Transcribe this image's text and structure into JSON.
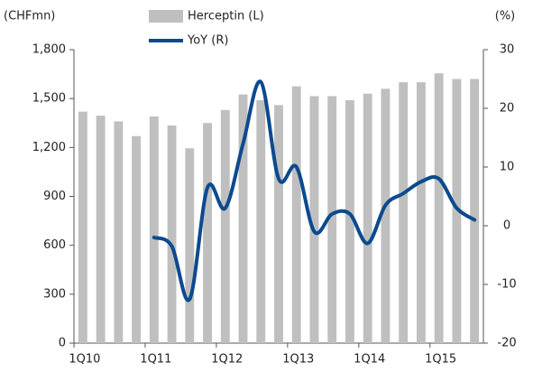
{
  "chart_data": {
    "type": "bar-line",
    "y_unit_label": "(CHFmn)",
    "y2_unit_label": "(%)",
    "categories": [
      "1Q10",
      null,
      null,
      null,
      "1Q11",
      null,
      null,
      null,
      "1Q12",
      null,
      null,
      null,
      "1Q13",
      null,
      null,
      null,
      "1Q14",
      null,
      null,
      null,
      "1Q15",
      null,
      null
    ],
    "series": [
      {
        "name": "Herceptin (L)",
        "type": "bar",
        "color": "#bfbfbf",
        "values": [
          1420,
          1395,
          1360,
          1270,
          1390,
          1335,
          1195,
          1350,
          1430,
          1525,
          1490,
          1460,
          1575,
          1515,
          1515,
          1490,
          1530,
          1560,
          1600,
          1600,
          1655,
          1620,
          1620
        ]
      },
      {
        "name": "YoY (R)",
        "type": "line",
        "axis": "y2",
        "color": "#0b4a8e",
        "values": [
          null,
          null,
          null,
          null,
          -2,
          -3.5,
          -12.5,
          6.5,
          3,
          14,
          24.5,
          8,
          10,
          -1,
          2,
          2,
          -3,
          3.5,
          5.5,
          7.5,
          8,
          3,
          1
        ]
      }
    ],
    "ylim": [
      0,
      1800
    ],
    "yticks": [
      0,
      300,
      600,
      900,
      {
        "value": 1200,
        "label": "1,200"
      },
      {
        "value": 1500,
        "label": "1,500"
      },
      {
        "value": 1800,
        "label": "1,800"
      }
    ],
    "y2lim": [
      -20,
      30
    ],
    "y2ticks": [
      -20,
      -10,
      0,
      10,
      20,
      30
    ]
  }
}
